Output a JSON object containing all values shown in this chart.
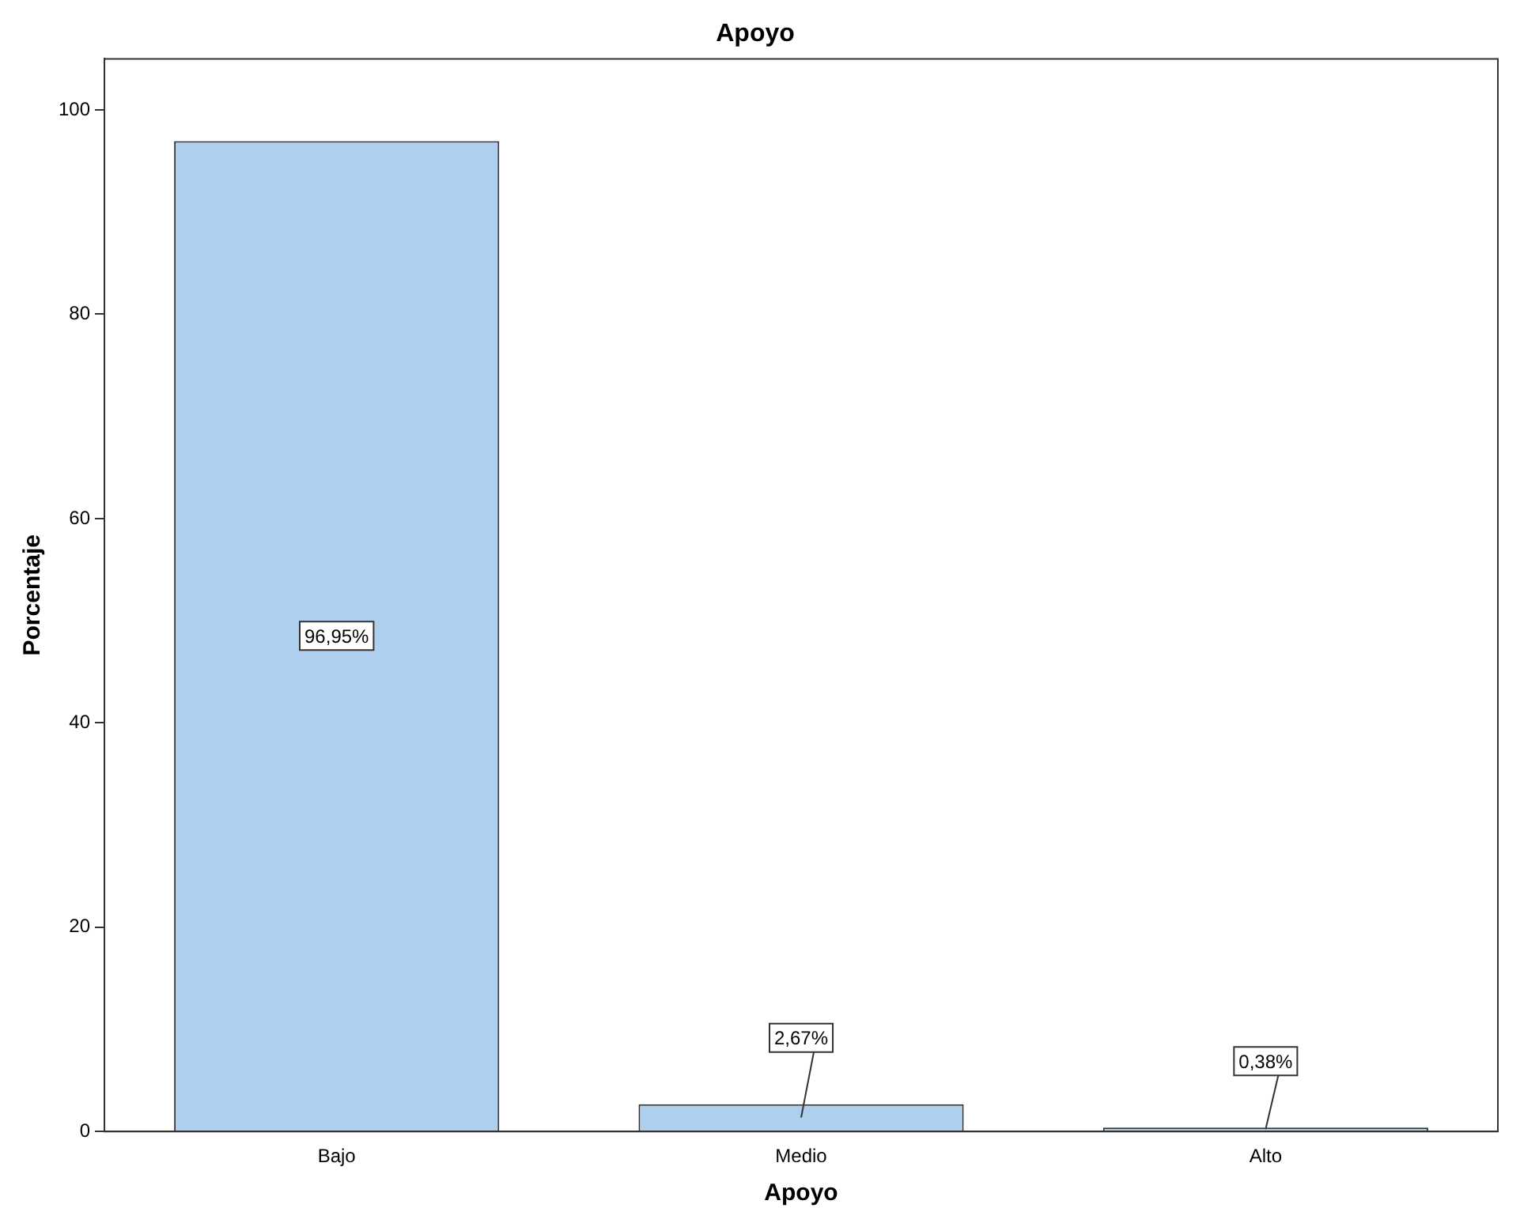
{
  "chart_data": {
    "type": "bar",
    "title": "Apoyo",
    "xlabel": "Apoyo",
    "ylabel": "Porcentaje",
    "categories": [
      "Bajo",
      "Medio",
      "Alto"
    ],
    "values": [
      96.95,
      2.67,
      0.38
    ],
    "value_labels": [
      "96,95%",
      "2,67%",
      "0,38%"
    ],
    "color": "#aed0ee",
    "ylim": [
      0,
      105
    ],
    "yticks": [
      0,
      20,
      40,
      60,
      80,
      100
    ],
    "grid": false,
    "legend": false
  }
}
